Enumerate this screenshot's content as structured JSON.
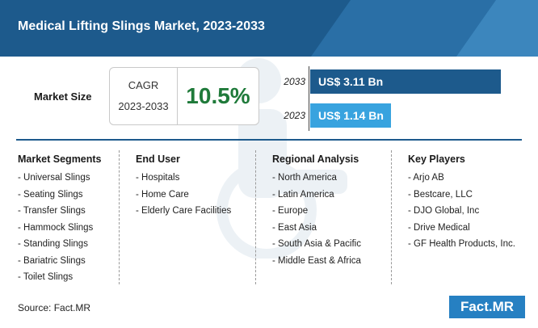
{
  "header": {
    "title": "Medical Lifting Slings Market, 2023-2033"
  },
  "market_size": {
    "label": "Market Size",
    "cagr_label": "CAGR",
    "cagr_period": "2023-2033",
    "cagr_value": "10.5%"
  },
  "chart_data": {
    "type": "bar",
    "orientation": "horizontal",
    "categories": [
      "2033",
      "2023"
    ],
    "values": [
      3.11,
      1.14
    ],
    "value_labels": [
      "US$ 3.11 Bn",
      "US$ 1.14 Bn"
    ],
    "colors": [
      "#1d5a8c",
      "#38a3df"
    ]
  },
  "columns": [
    {
      "heading": "Market Segments",
      "items": [
        "- Universal Slings",
        "- Seating Slings",
        "- Transfer Slings",
        "- Hammock Slings",
        "- Standing Slings",
        "- Bariatric Slings",
        "- Toilet Slings"
      ]
    },
    {
      "heading": "End User",
      "items": [
        "- Hospitals",
        "- Home Care",
        "- Elderly Care Facilities"
      ]
    },
    {
      "heading": "Regional Analysis",
      "items": [
        "- North America",
        "- Latin America",
        "- Europe",
        "- East Asia",
        "- South Asia & Pacific",
        "- Middle East & Africa"
      ]
    },
    {
      "heading": "Key Players",
      "items": [
        "- Arjo AB",
        "- Bestcare, LLC",
        "- DJO Global, Inc",
        "- Drive Medical",
        "- GF Health Products, Inc."
      ]
    }
  ],
  "footer": {
    "source": "Source: Fact.MR",
    "logo": "Fact.MR"
  }
}
